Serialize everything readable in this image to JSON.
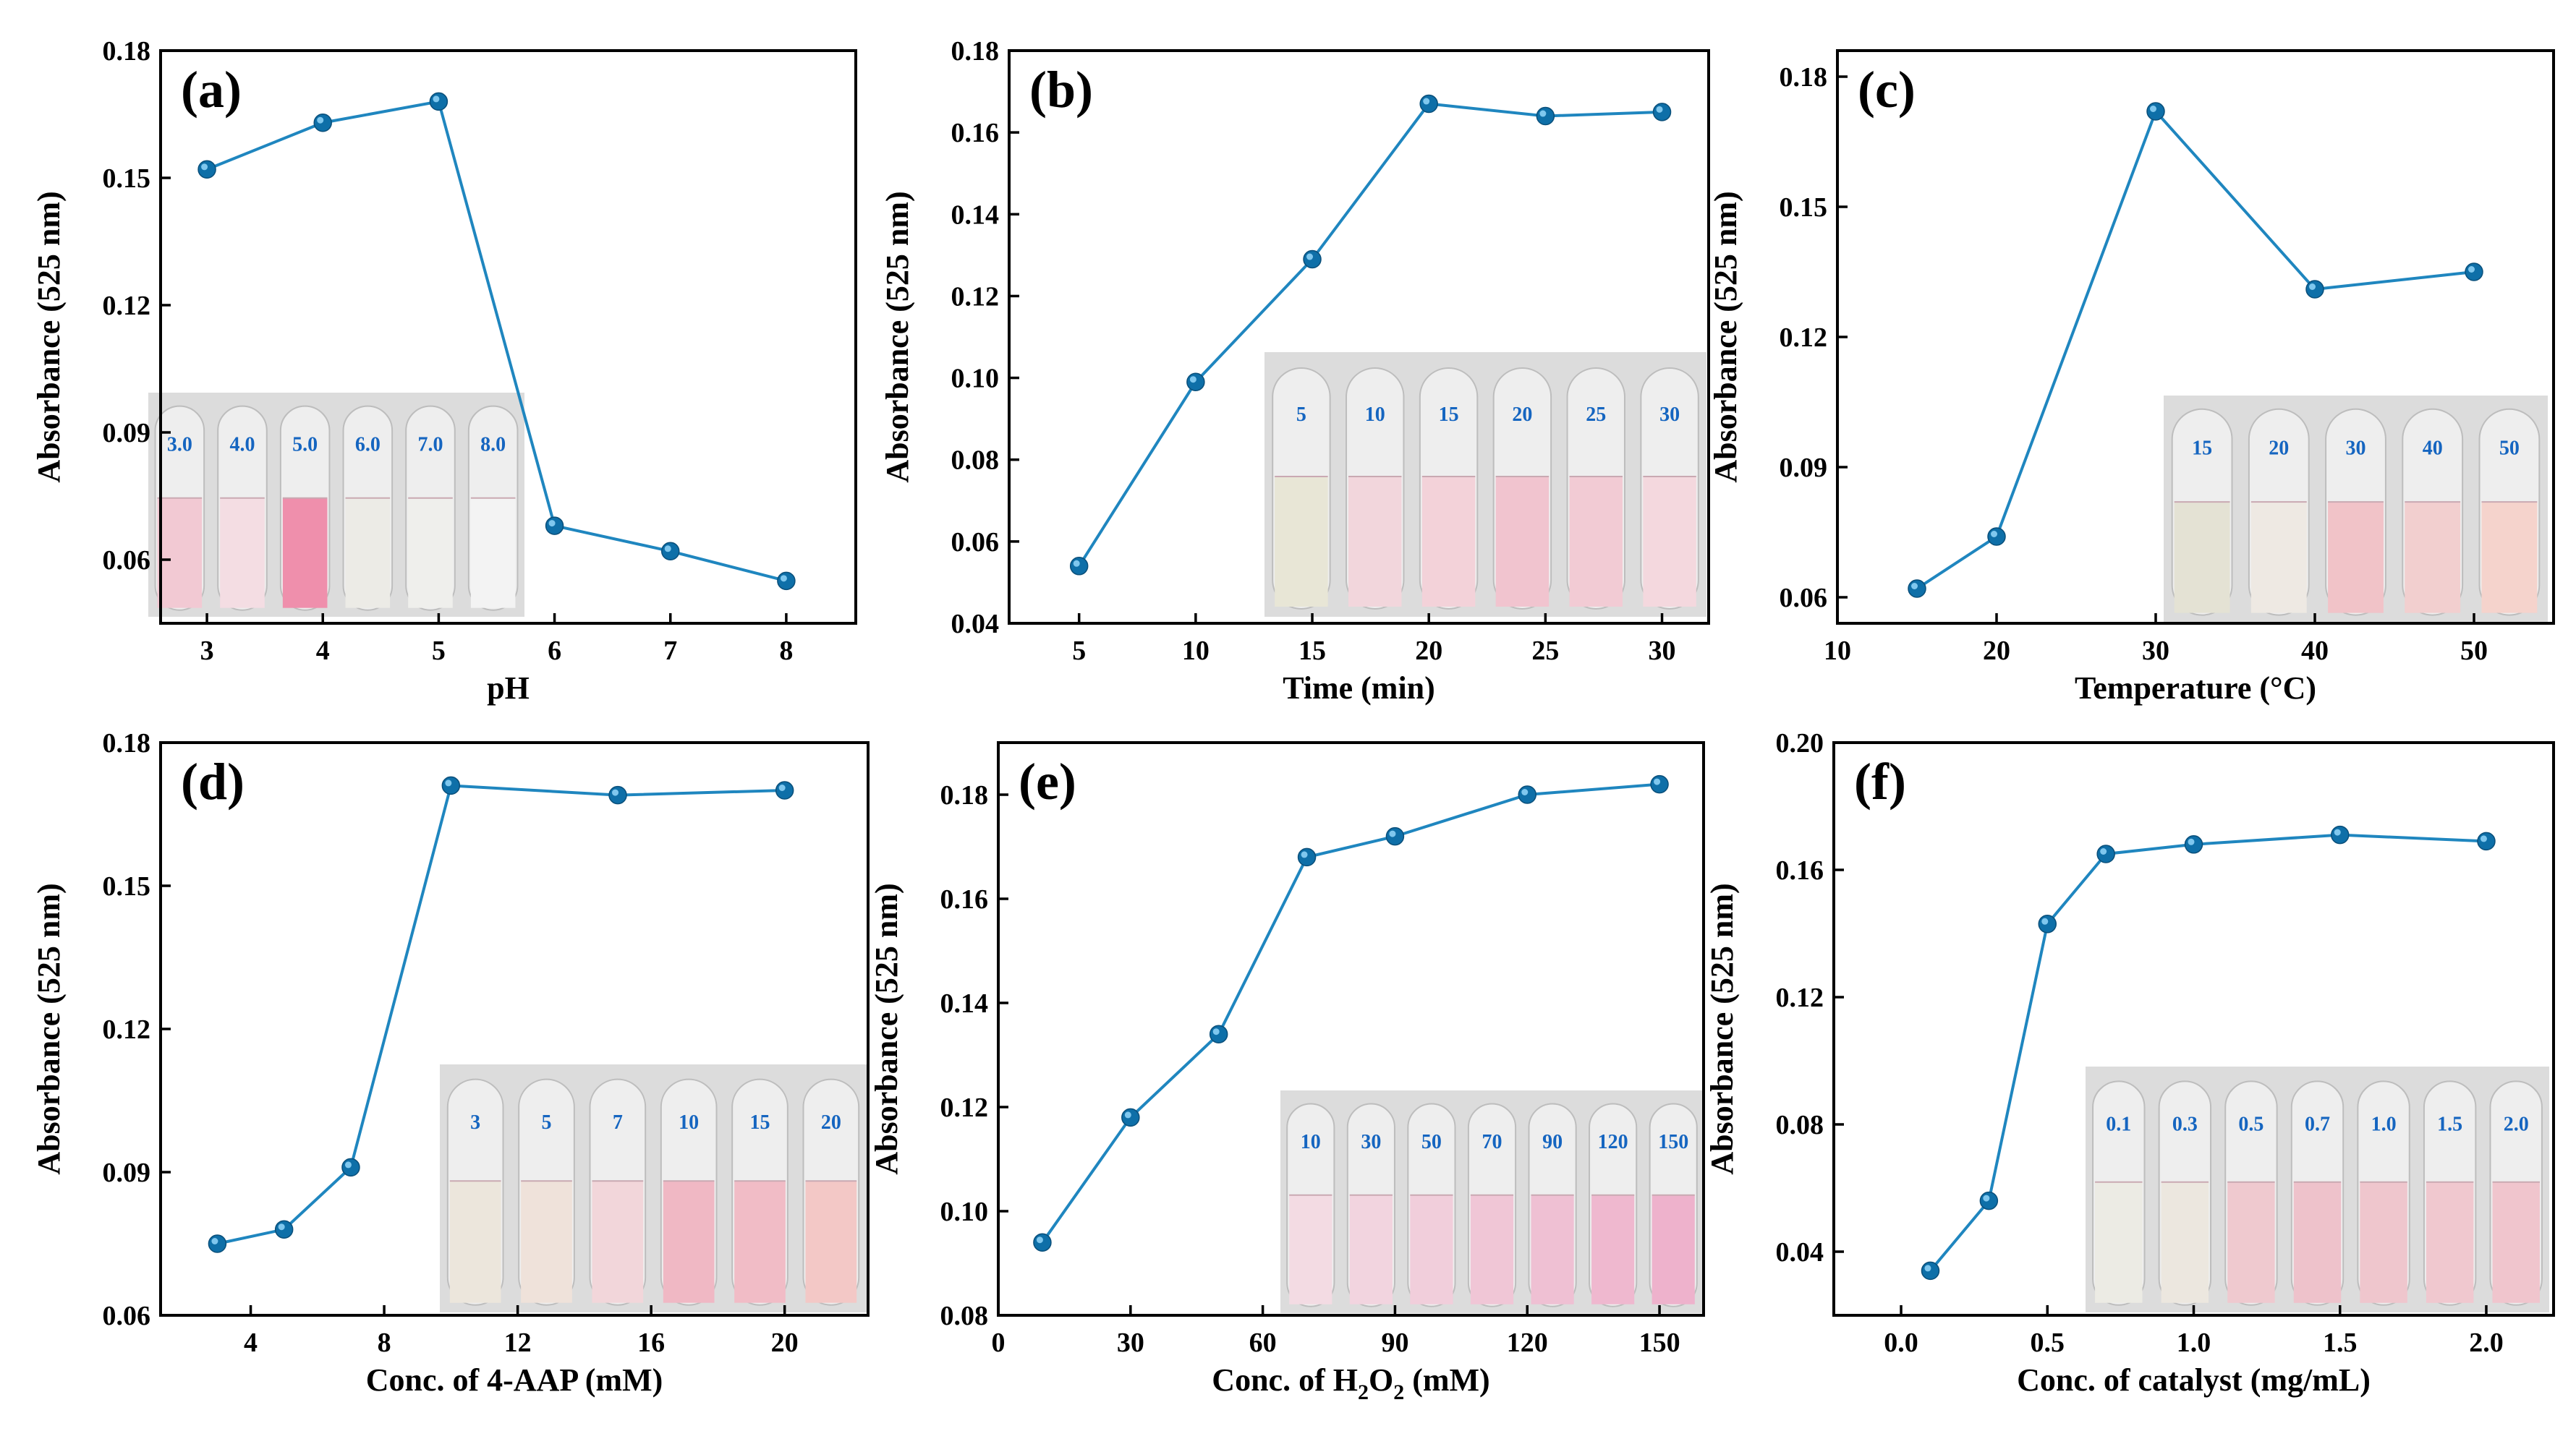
{
  "chart_data": [
    {
      "type": "line",
      "panel": "(a)",
      "xlabel": "pH",
      "ylabel": "Absorbance (525 nm)",
      "xlim": [
        2.6,
        8.6
      ],
      "ylim": [
        0.045,
        0.18
      ],
      "xticks": [
        3,
        4,
        5,
        6,
        7,
        8
      ],
      "xtick_labels": [
        "3",
        "4",
        "5",
        "6",
        "7",
        "8"
      ],
      "yticks": [
        0.06,
        0.09,
        0.12,
        0.15,
        0.18
      ],
      "ytick_labels": [
        "0.06",
        "0.09",
        "0.12",
        "0.15",
        "0.18"
      ],
      "x": [
        3,
        4,
        5,
        6,
        7,
        8
      ],
      "values": [
        0.152,
        0.163,
        0.168,
        0.068,
        0.062,
        0.055
      ],
      "inset_labels": [
        "3.0",
        "4.0",
        "5.0",
        "6.0",
        "7.0",
        "8.0"
      ],
      "inset_colors": [
        "#f2c9d3",
        "#f4dde3",
        "#ef8fac",
        "#ecebe6",
        "#efefec",
        "#f3f3f3"
      ]
    },
    {
      "type": "line",
      "panel": "(b)",
      "xlabel": "Time (min)",
      "ylabel": "Absorbance (525 nm)",
      "xlim": [
        2,
        32
      ],
      "ylim": [
        0.04,
        0.18
      ],
      "xticks": [
        5,
        10,
        15,
        20,
        25,
        30
      ],
      "xtick_labels": [
        "5",
        "10",
        "15",
        "20",
        "25",
        "30"
      ],
      "yticks": [
        0.04,
        0.06,
        0.08,
        0.1,
        0.12,
        0.14,
        0.16,
        0.18
      ],
      "ytick_labels": [
        "0.04",
        "0.06",
        "0.08",
        "0.10",
        "0.12",
        "0.14",
        "0.16",
        "0.18"
      ],
      "x": [
        5,
        10,
        15,
        20,
        25,
        30
      ],
      "values": [
        0.054,
        0.099,
        0.129,
        0.167,
        0.164,
        0.165
      ],
      "inset_labels": [
        "5",
        "10",
        "15",
        "20",
        "25",
        "30"
      ],
      "inset_colors": [
        "#e8e6d6",
        "#f2d6dc",
        "#f3d2d9",
        "#f1c4cf",
        "#f2cbd4",
        "#f4d8de"
      ]
    },
    {
      "type": "line",
      "panel": "(c)",
      "xlabel": "Temperature (°C)",
      "ylabel": "Absorbance (525 nm)",
      "xlim": [
        10,
        55
      ],
      "ylim": [
        0.054,
        0.186
      ],
      "xticks": [
        10,
        20,
        30,
        40,
        50
      ],
      "xtick_labels": [
        "10",
        "20",
        "30",
        "40",
        "50"
      ],
      "yticks": [
        0.06,
        0.09,
        0.12,
        0.15,
        0.18
      ],
      "ytick_labels": [
        "0.06",
        "0.09",
        "0.12",
        "0.15",
        "0.18"
      ],
      "x": [
        15,
        20,
        30,
        40,
        50
      ],
      "values": [
        0.062,
        0.074,
        0.172,
        0.131,
        0.135
      ],
      "inset_labels": [
        "15",
        "20",
        "30",
        "40",
        "50"
      ],
      "inset_colors": [
        "#e4e2d4",
        "#eee9e3",
        "#f1c3c8",
        "#f2cfcf",
        "#f5d3cc"
      ]
    },
    {
      "type": "line",
      "panel": "(d)",
      "xlabel": "Conc. of 4-AAP (mM)",
      "ylabel": "Absorbance (525 nm)",
      "xlim": [
        1.3,
        22.5
      ],
      "ylim": [
        0.06,
        0.18
      ],
      "xticks": [
        4,
        8,
        12,
        16,
        20
      ],
      "xtick_labels": [
        "4",
        "8",
        "12",
        "16",
        "20"
      ],
      "yticks": [
        0.06,
        0.09,
        0.12,
        0.15,
        0.18
      ],
      "ytick_labels": [
        "0.06",
        "0.09",
        "0.12",
        "0.15",
        "0.18"
      ],
      "x": [
        3,
        5,
        7,
        10,
        15,
        20
      ],
      "values": [
        0.075,
        0.078,
        0.091,
        0.171,
        0.169,
        0.17
      ],
      "inset_labels": [
        "3",
        "5",
        "7",
        "10",
        "15",
        "20"
      ],
      "inset_colors": [
        "#ece6dc",
        "#efe2da",
        "#f2d6da",
        "#f0b8c4",
        "#f1bcc6",
        "#f3c8c6"
      ]
    },
    {
      "type": "line",
      "panel": "(e)",
      "xlabel": "Conc. of H2O2 (mM)",
      "ylabel": "Absorbance (525 nm)",
      "xlim": [
        0,
        160
      ],
      "ylim": [
        0.08,
        0.19
      ],
      "xticks": [
        0,
        30,
        60,
        90,
        120,
        150
      ],
      "xtick_labels": [
        "0",
        "30",
        "60",
        "90",
        "120",
        "150"
      ],
      "yticks": [
        0.08,
        0.1,
        0.12,
        0.14,
        0.16,
        0.18
      ],
      "ytick_labels": [
        "0.08",
        "0.10",
        "0.12",
        "0.14",
        "0.16",
        "0.18"
      ],
      "x": [
        10,
        30,
        50,
        70,
        90,
        120,
        150
      ],
      "values": [
        0.094,
        0.118,
        0.134,
        0.168,
        0.172,
        0.18,
        0.182
      ],
      "inset_labels": [
        "10",
        "30",
        "50",
        "70",
        "90",
        "120",
        "150"
      ],
      "inset_colors": [
        "#f3dbe3",
        "#f2d4df",
        "#f1cedb",
        "#f0c6d6",
        "#efc0d3",
        "#efb8cf",
        "#eeb2cc"
      ]
    },
    {
      "type": "line",
      "panel": "(f)",
      "xlabel": "Conc. of catalyst (mg/mL)",
      "ylabel": "Absorbance (525 nm)",
      "xlim": [
        -0.23,
        2.23
      ],
      "ylim": [
        0.02,
        0.2
      ],
      "xticks": [
        0.0,
        0.5,
        1.0,
        1.5,
        2.0
      ],
      "xtick_labels": [
        "0.0",
        "0.5",
        "1.0",
        "1.5",
        "2.0"
      ],
      "yticks": [
        0.04,
        0.08,
        0.12,
        0.16,
        0.2
      ],
      "ytick_labels": [
        "0.04",
        "0.08",
        "0.12",
        "0.16",
        "0.20"
      ],
      "x": [
        0.1,
        0.3,
        0.5,
        0.7,
        1.0,
        1.5,
        2.0
      ],
      "values": [
        0.034,
        0.056,
        0.143,
        0.165,
        0.168,
        0.171,
        0.169
      ],
      "inset_labels": [
        "0.1",
        "0.3",
        "0.5",
        "0.7",
        "1.0",
        "1.5",
        "2.0"
      ],
      "inset_colors": [
        "#ecebe4",
        "#ece7df",
        "#efc9cf",
        "#eec2cb",
        "#efc6cd",
        "#f0c8cf",
        "#f0c5cd"
      ]
    }
  ]
}
